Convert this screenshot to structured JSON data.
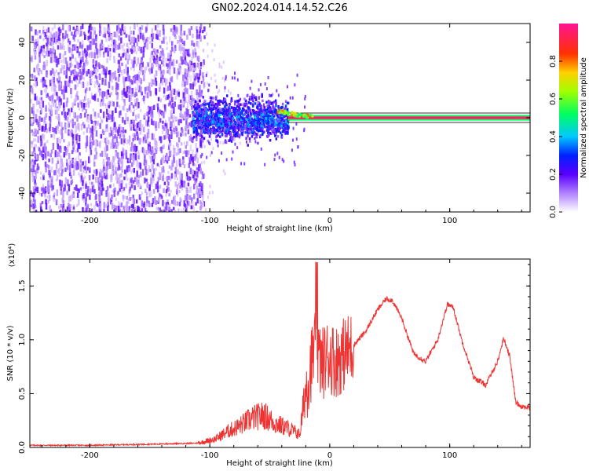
{
  "title": "GN02.2024.014.14.52.C26",
  "chart_data": [
    {
      "type": "heatmap",
      "xlabel": "Height of straight line (km)",
      "ylabel": "Frequency (Hz)",
      "xlim": [
        -250,
        167
      ],
      "ylim": [
        -50,
        50
      ],
      "xticks": [
        -200,
        -100,
        0,
        100
      ],
      "yticks": [
        -40,
        -20,
        0,
        20,
        40
      ],
      "colorbar": {
        "label": "Normalized spectral amplitude",
        "range": [
          0.0,
          1.0
        ],
        "ticks": [
          "0.0",
          "0.2",
          "0.4",
          "0.6",
          "0.8"
        ],
        "colors": [
          "#ffffff",
          "#7a00ff",
          "#0000ff",
          "#00e5ff",
          "#00ff40",
          "#ffff00",
          "#ff8000",
          "#ff0000",
          "#ff1493"
        ]
      },
      "regions": [
        {
          "x_range": [
            -250,
            -105
          ],
          "freq_range": [
            -50,
            50
          ],
          "amplitude": 0.08
        },
        {
          "x_range": [
            -115,
            -35
          ],
          "freq_range": [
            -15,
            15
          ],
          "amplitude": 0.25
        },
        {
          "x_range": [
            -35,
            167
          ],
          "freq_range": [
            -1,
            1
          ],
          "amplitude": 0.95
        }
      ]
    },
    {
      "type": "line",
      "xlabel": "Height of straight line (km)",
      "ylabel": "SNR (10 * v/v)",
      "yunit": "(x10⁴)",
      "xlim": [
        -250,
        167
      ],
      "ylim": [
        0.0,
        1.75
      ],
      "xticks": [
        -200,
        -100,
        0,
        100
      ],
      "yticks": [
        "0.0",
        "0.5",
        "1.0",
        "1.5"
      ],
      "color": "#ee3333",
      "series": [
        {
          "x": [
            -250,
            -200,
            -150,
            -110,
            -95,
            -85,
            -75,
            -65,
            -55,
            -45,
            -35,
            -25,
            -20,
            -15,
            -12,
            -10,
            -7,
            -5,
            -2,
            0,
            5,
            10,
            20,
            30,
            40,
            47,
            52,
            60,
            70,
            80,
            90,
            98,
            103,
            110,
            120,
            130,
            140,
            145,
            150,
            155,
            160,
            167
          ],
          "y": [
            0.02,
            0.02,
            0.03,
            0.04,
            0.08,
            0.15,
            0.2,
            0.27,
            0.3,
            0.22,
            0.18,
            0.12,
            0.55,
            0.8,
            0.95,
            0.9,
            0.75,
            0.8,
            0.85,
            0.85,
            0.8,
            0.85,
            0.95,
            1.08,
            1.28,
            1.38,
            1.37,
            1.2,
            0.87,
            0.8,
            1.0,
            1.33,
            1.3,
            1.0,
            0.65,
            0.58,
            0.8,
            1.02,
            0.85,
            0.42,
            0.38,
            0.37
          ]
        }
      ]
    }
  ]
}
